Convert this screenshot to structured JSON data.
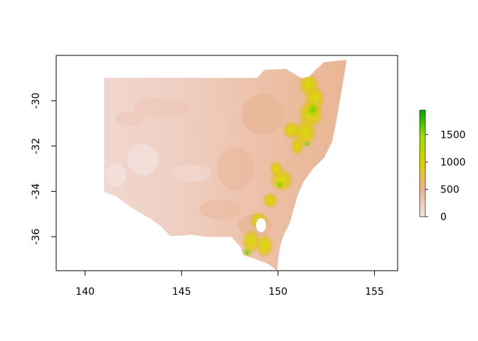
{
  "map": {
    "type": "raster-map",
    "region_shape": "New South Wales",
    "x_ticks": [
      "140",
      "145",
      "150",
      "155"
    ],
    "y_ticks": [
      "-30",
      "-32",
      "-34",
      "-36"
    ],
    "xlim": [
      138.5,
      156.2
    ],
    "ylim": [
      -37.5,
      -28.0
    ],
    "legend": {
      "ticks": [
        "0",
        "500",
        "1000",
        "1500"
      ],
      "min": 0,
      "max": 1950,
      "placement": "right",
      "colors": [
        "#f2f2f2",
        "#ebb48f",
        "#e2cc00",
        "#9be000",
        "#00a600"
      ]
    }
  }
}
